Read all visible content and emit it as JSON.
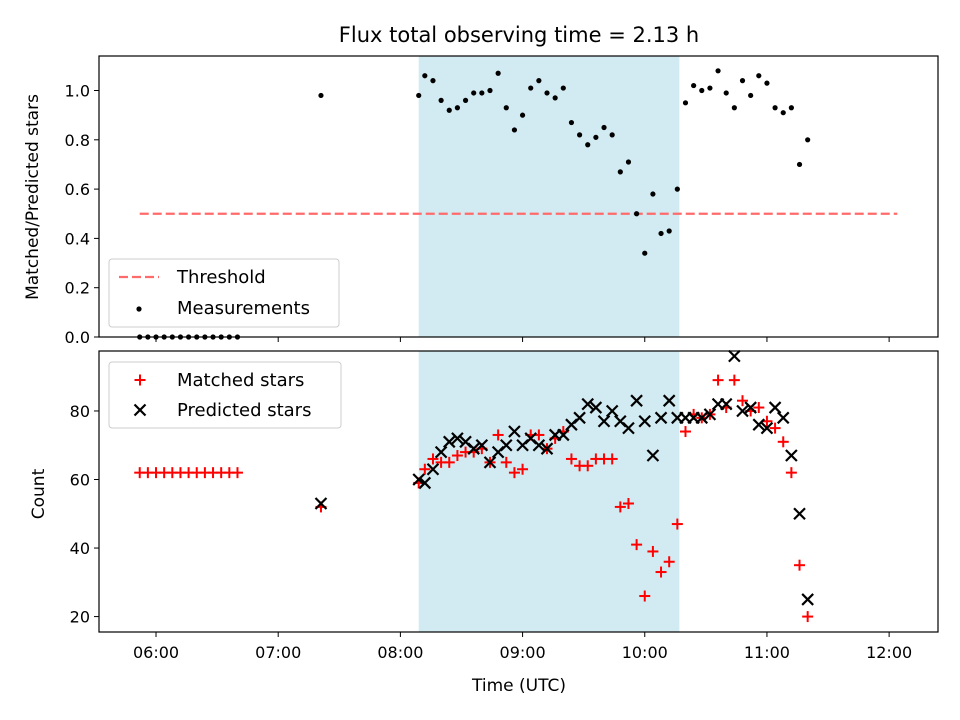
{
  "chart_data": [
    {
      "type": "scatter",
      "panel": "top",
      "title": "Flux total observing time = 2.13 h",
      "ylabel": "Matched/Predicted stars",
      "xlabel": "",
      "xlim": [
        "05:32",
        "12:24"
      ],
      "ylim": [
        0.0,
        1.14
      ],
      "yticks": [
        "0.0",
        "0.2",
        "0.4",
        "0.6",
        "0.8",
        "1.0"
      ],
      "highlight_span": {
        "start": "08:09",
        "end": "10:17",
        "color": "#add8e6"
      },
      "threshold": {
        "name": "Threshold",
        "value": 0.5,
        "start": "05:52",
        "end": "12:04",
        "color": "#ff6b6b",
        "style": "dashed"
      },
      "series": [
        {
          "name": "Measurements",
          "color": "#000000",
          "marker": "dot",
          "points": [
            [
              "05:52",
              0.0
            ],
            [
              "05:56",
              0.0
            ],
            [
              "06:00",
              0.0
            ],
            [
              "06:04",
              0.0
            ],
            [
              "06:08",
              0.0
            ],
            [
              "06:12",
              0.0
            ],
            [
              "06:16",
              0.0
            ],
            [
              "06:20",
              0.0
            ],
            [
              "06:24",
              0.0
            ],
            [
              "06:28",
              0.0
            ],
            [
              "06:32",
              0.0
            ],
            [
              "06:36",
              0.0
            ],
            [
              "06:40",
              0.0
            ],
            [
              "07:21",
              0.98
            ],
            [
              "08:09",
              0.98
            ],
            [
              "08:12",
              1.06
            ],
            [
              "08:16",
              1.04
            ],
            [
              "08:20",
              0.96
            ],
            [
              "08:24",
              0.92
            ],
            [
              "08:28",
              0.93
            ],
            [
              "08:32",
              0.96
            ],
            [
              "08:36",
              0.99
            ],
            [
              "08:40",
              0.99
            ],
            [
              "08:44",
              1.0
            ],
            [
              "08:48",
              1.07
            ],
            [
              "08:52",
              0.93
            ],
            [
              "08:56",
              0.84
            ],
            [
              "09:00",
              0.9
            ],
            [
              "09:04",
              1.01
            ],
            [
              "09:08",
              1.04
            ],
            [
              "09:12",
              0.99
            ],
            [
              "09:16",
              0.97
            ],
            [
              "09:20",
              1.01
            ],
            [
              "09:24",
              0.87
            ],
            [
              "09:28",
              0.82
            ],
            [
              "09:32",
              0.78
            ],
            [
              "09:36",
              0.81
            ],
            [
              "09:40",
              0.85
            ],
            [
              "09:44",
              0.82
            ],
            [
              "09:48",
              0.67
            ],
            [
              "09:52",
              0.71
            ],
            [
              "09:56",
              0.5
            ],
            [
              "10:00",
              0.34
            ],
            [
              "10:04",
              0.58
            ],
            [
              "10:08",
              0.42
            ],
            [
              "10:12",
              0.43
            ],
            [
              "10:16",
              0.6
            ],
            [
              "10:20",
              0.95
            ],
            [
              "10:24",
              1.02
            ],
            [
              "10:28",
              1.0
            ],
            [
              "10:32",
              1.01
            ],
            [
              "10:36",
              1.08
            ],
            [
              "10:40",
              0.99
            ],
            [
              "10:44",
              0.93
            ],
            [
              "10:48",
              1.04
            ],
            [
              "10:52",
              0.98
            ],
            [
              "10:56",
              1.06
            ],
            [
              "11:00",
              1.03
            ],
            [
              "11:04",
              0.93
            ],
            [
              "11:08",
              0.91
            ],
            [
              "11:12",
              0.93
            ],
            [
              "11:16",
              0.7
            ],
            [
              "11:20",
              0.8
            ]
          ]
        }
      ],
      "legend": {
        "placement": "lower-left",
        "entries": [
          "Threshold",
          "Measurements"
        ]
      }
    },
    {
      "type": "scatter",
      "panel": "bottom",
      "title": "",
      "xlabel": "Time (UTC)",
      "ylabel": "Count",
      "xlim": [
        "05:32",
        "12:24"
      ],
      "ylim": [
        15.5,
        97.5
      ],
      "xticks": [
        "06:00",
        "07:00",
        "08:00",
        "09:00",
        "10:00",
        "11:00",
        "12:00"
      ],
      "yticks": [
        "20",
        "40",
        "60",
        "80"
      ],
      "highlight_span": {
        "start": "08:09",
        "end": "10:17",
        "color": "#add8e6"
      },
      "series": [
        {
          "name": "Matched stars",
          "color": "#ff0000",
          "marker": "plus",
          "points": [
            [
              "05:52",
              62
            ],
            [
              "05:56",
              62
            ],
            [
              "06:00",
              62
            ],
            [
              "06:04",
              62
            ],
            [
              "06:08",
              62
            ],
            [
              "06:12",
              62
            ],
            [
              "06:16",
              62
            ],
            [
              "06:20",
              62
            ],
            [
              "06:24",
              62
            ],
            [
              "06:28",
              62
            ],
            [
              "06:32",
              62
            ],
            [
              "06:36",
              62
            ],
            [
              "06:40",
              62
            ],
            [
              "07:21",
              52
            ],
            [
              "08:09",
              59
            ],
            [
              "08:12",
              63
            ],
            [
              "08:16",
              66
            ],
            [
              "08:20",
              65
            ],
            [
              "08:24",
              65
            ],
            [
              "08:28",
              67
            ],
            [
              "08:32",
              68
            ],
            [
              "08:36",
              68
            ],
            [
              "08:40",
              69
            ],
            [
              "08:44",
              65
            ],
            [
              "08:48",
              73
            ],
            [
              "08:52",
              65
            ],
            [
              "08:56",
              62
            ],
            [
              "09:00",
              63
            ],
            [
              "09:04",
              73
            ],
            [
              "09:08",
              73
            ],
            [
              "09:12",
              69
            ],
            [
              "09:16",
              72
            ],
            [
              "09:20",
              74
            ],
            [
              "09:24",
              66
            ],
            [
              "09:28",
              64
            ],
            [
              "09:32",
              64
            ],
            [
              "09:36",
              66
            ],
            [
              "09:40",
              66
            ],
            [
              "09:44",
              66
            ],
            [
              "09:48",
              52
            ],
            [
              "09:52",
              53
            ],
            [
              "09:56",
              41
            ],
            [
              "10:00",
              26
            ],
            [
              "10:04",
              39
            ],
            [
              "10:08",
              33
            ],
            [
              "10:12",
              36
            ],
            [
              "10:16",
              47
            ],
            [
              "10:20",
              74
            ],
            [
              "10:24",
              79
            ],
            [
              "10:28",
              78
            ],
            [
              "10:32",
              79
            ],
            [
              "10:36",
              89
            ],
            [
              "10:40",
              81
            ],
            [
              "10:44",
              89
            ],
            [
              "10:48",
              83
            ],
            [
              "10:52",
              80
            ],
            [
              "10:56",
              81
            ],
            [
              "11:00",
              77
            ],
            [
              "11:04",
              75
            ],
            [
              "11:08",
              71
            ],
            [
              "11:12",
              62
            ],
            [
              "11:16",
              35
            ],
            [
              "11:20",
              20
            ]
          ]
        },
        {
          "name": "Predicted stars",
          "color": "#000000",
          "marker": "x",
          "points": [
            [
              "07:21",
              53
            ],
            [
              "08:09",
              60
            ],
            [
              "08:12",
              59
            ],
            [
              "08:16",
              63
            ],
            [
              "08:20",
              68
            ],
            [
              "08:24",
              71
            ],
            [
              "08:28",
              72
            ],
            [
              "08:32",
              71
            ],
            [
              "08:36",
              69
            ],
            [
              "08:40",
              70
            ],
            [
              "08:44",
              65
            ],
            [
              "08:48",
              68
            ],
            [
              "08:52",
              70
            ],
            [
              "08:56",
              74
            ],
            [
              "09:00",
              70
            ],
            [
              "09:04",
              72
            ],
            [
              "09:08",
              70
            ],
            [
              "09:12",
              69
            ],
            [
              "09:16",
              73
            ],
            [
              "09:20",
              73
            ],
            [
              "09:24",
              76
            ],
            [
              "09:28",
              78
            ],
            [
              "09:32",
              82
            ],
            [
              "09:36",
              81
            ],
            [
              "09:40",
              77
            ],
            [
              "09:44",
              80
            ],
            [
              "09:48",
              77
            ],
            [
              "09:52",
              75
            ],
            [
              "09:56",
              83
            ],
            [
              "10:00",
              77
            ],
            [
              "10:04",
              67
            ],
            [
              "10:08",
              78
            ],
            [
              "10:12",
              83
            ],
            [
              "10:16",
              78
            ],
            [
              "10:20",
              78
            ],
            [
              "10:24",
              78
            ],
            [
              "10:28",
              78
            ],
            [
              "10:32",
              79
            ],
            [
              "10:36",
              82
            ],
            [
              "10:40",
              82
            ],
            [
              "10:44",
              96
            ],
            [
              "10:48",
              80
            ],
            [
              "10:52",
              81
            ],
            [
              "10:56",
              76
            ],
            [
              "11:00",
              75
            ],
            [
              "11:04",
              81
            ],
            [
              "11:08",
              78
            ],
            [
              "11:12",
              67
            ],
            [
              "11:16",
              50
            ],
            [
              "11:20",
              25
            ]
          ]
        }
      ],
      "legend": {
        "placement": "upper-left",
        "entries": [
          "Matched stars",
          "Predicted stars"
        ]
      }
    }
  ]
}
